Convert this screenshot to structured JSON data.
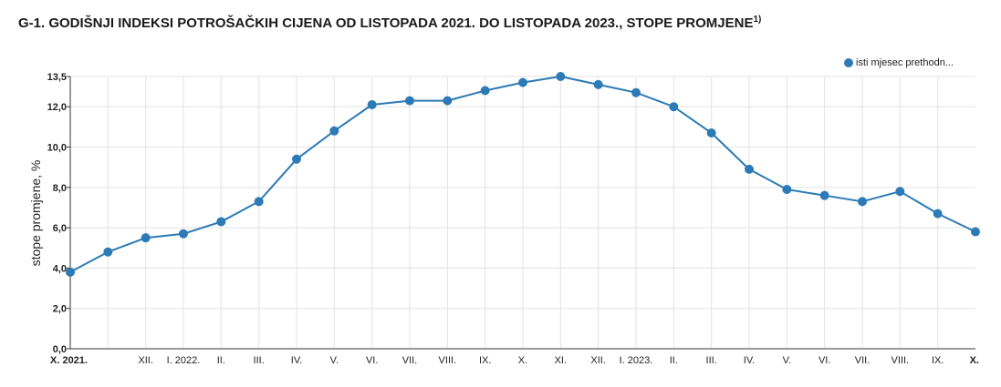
{
  "title": {
    "text": "G-1. GODIŠNJI INDEKSI POTROŠAČKIH CIJENA OD LISTOPADA 2021. DO LISTOPADA 2023., STOPE PROMJENE",
    "superscript": "1)"
  },
  "chart_data": {
    "type": "line",
    "ylabel": "stope promjene, %",
    "xlabel": "",
    "ylim": [
      0,
      13.5
    ],
    "yticks": [
      0,
      2,
      4,
      6,
      8,
      10,
      12,
      13.5
    ],
    "ytick_labels": [
      "0,0",
      "2,0",
      "4,0",
      "6,0",
      "8,0",
      "10,0",
      "12,0",
      "13,5"
    ],
    "categories": [
      "X. 2021.",
      "",
      "XII.",
      "I. 2022.",
      "II.",
      "III.",
      "IV.",
      "V.",
      "VI.",
      "VII.",
      "VIII.",
      "IX.",
      "X.",
      "XI.",
      "XII.",
      "I. 2023.",
      "II.",
      "III.",
      "IV.",
      "V.",
      "VI.",
      "VII.",
      "VIII.",
      "IX.",
      "X."
    ],
    "bold_categories": [
      0,
      24
    ],
    "grid": true,
    "legend_position": "top-right",
    "series": [
      {
        "name": "isti mjesec prethodn...",
        "color": "#2c7bb6",
        "values": [
          3.8,
          4.8,
          5.5,
          5.7,
          6.3,
          7.3,
          9.4,
          10.8,
          12.1,
          12.3,
          12.3,
          12.8,
          13.2,
          13.5,
          13.1,
          12.7,
          12.0,
          10.7,
          8.9,
          7.9,
          7.6,
          7.3,
          7.8,
          6.7,
          5.8
        ]
      }
    ]
  }
}
